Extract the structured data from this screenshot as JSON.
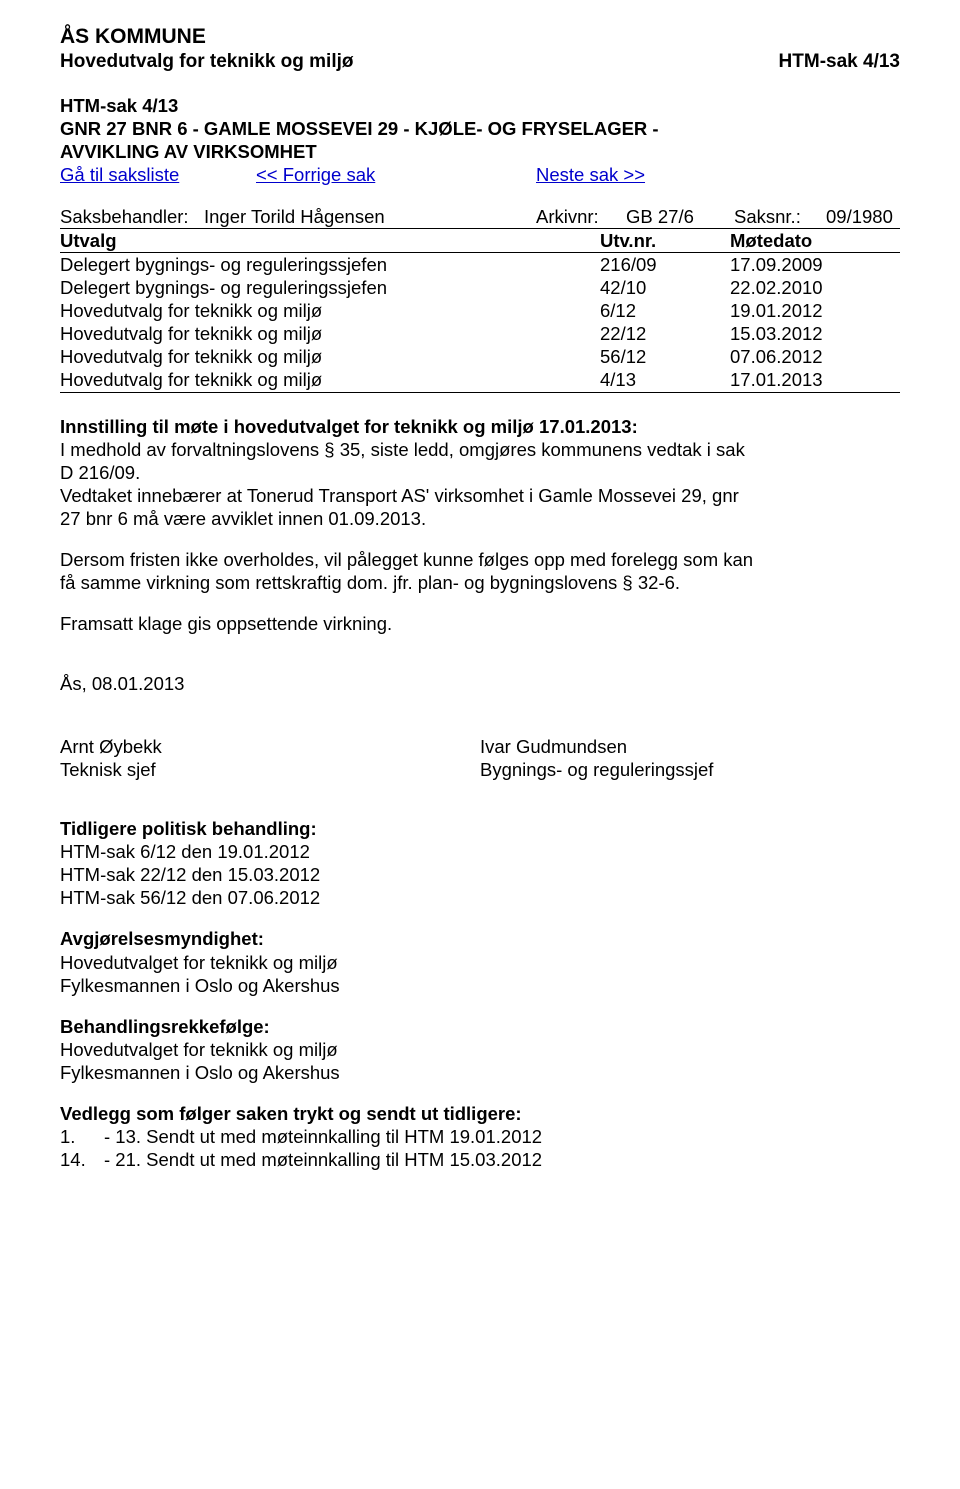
{
  "header": {
    "org": "ÅS KOMMUNE",
    "committee": "Hovedutvalg for teknikk og miljø",
    "case_ref": "HTM-sak 4/13"
  },
  "case": {
    "ref": "HTM-sak 4/13",
    "title_line1": "GNR 27 BNR 6 - GAMLE MOSSEVEI 29 - KJØLE- OG FRYSELAGER -",
    "title_line2": "AVVIKLING AV VIRKSOMHET"
  },
  "nav": {
    "saksliste": "Gå til saksliste",
    "prev": "<< Forrige sak",
    "next": "Neste sak >>"
  },
  "meta": {
    "handler_label": "Saksbehandler:",
    "handler_name": "Inger Torild Hågensen",
    "arkiv_label": "Arkivnr:",
    "arkiv_val": "GB 27/6",
    "saksnr_label": "Saksnr.:",
    "saksnr_val": "09/1980",
    "col1": "Utvalg",
    "col2": "Utv.nr.",
    "col3": "Møtedato"
  },
  "history": [
    {
      "body": "Delegert bygnings- og reguleringssjefen",
      "nr": "216/09",
      "date": "17.09.2009"
    },
    {
      "body": "Delegert bygnings- og reguleringssjefen",
      "nr": "42/10",
      "date": "22.02.2010"
    },
    {
      "body": "Hovedutvalg for teknikk og miljø",
      "nr": "6/12",
      "date": "19.01.2012"
    },
    {
      "body": "Hovedutvalg for teknikk og miljø",
      "nr": "22/12",
      "date": "15.03.2012"
    },
    {
      "body": "Hovedutvalg for teknikk og miljø",
      "nr": "56/12",
      "date": "07.06.2012"
    },
    {
      "body": "Hovedutvalg for teknikk og miljø",
      "nr": "4/13",
      "date": "17.01.2013"
    }
  ],
  "recommendation": {
    "heading": "Innstilling til møte i hovedutvalget for teknikk og miljø 17.01.2013:",
    "p1a": "I medhold av forvaltningslovens § 35, siste ledd, omgjøres kommunens vedtak i sak",
    "p1b": "D 216/09.",
    "p2a": "Vedtaket innebærer at Tonerud Transport AS' virksomhet i Gamle Mossevei 29, gnr",
    "p2b": "27 bnr 6 må være avviklet innen 01.09.2013.",
    "p3a": "Dersom fristen ikke overholdes, vil pålegget kunne følges opp med forelegg som kan",
    "p3b": "få samme virkning som rettskraftig dom. jfr. plan- og bygningslovens § 32-6.",
    "p4": "Framsatt klage gis oppsettende virkning."
  },
  "date_place": "Ås, 08.01.2013",
  "sign": {
    "left_name": "Arnt Øybekk",
    "left_title": "Teknisk sjef",
    "right_name": "Ivar Gudmundsen",
    "right_title": "Bygnings- og reguleringssjef"
  },
  "sections": {
    "tidligere": {
      "hd": "Tidligere politisk behandling:",
      "lines": [
        "HTM-sak 6/12 den 19.01.2012",
        "HTM-sak 22/12 den 15.03.2012",
        "HTM-sak 56/12 den 07.06.2012"
      ]
    },
    "avgj": {
      "hd": "Avgjørelsesmyndighet:",
      "lines": [
        "Hovedutvalget for teknikk og miljø",
        "Fylkesmannen i Oslo og Akershus"
      ]
    },
    "rekke": {
      "hd": "Behandlingsrekkefølge:",
      "lines": [
        "Hovedutvalget for teknikk og miljø",
        "Fylkesmannen i Oslo og Akershus"
      ]
    },
    "vedlegg": {
      "hd": "Vedlegg som følger saken trykt og sendt ut tidligere:",
      "items": [
        {
          "num": "1.",
          "text": "- 13. Sendt ut med møteinnkalling til HTM 19.01.2012"
        },
        {
          "num": "14.",
          "text": "- 21. Sendt ut med møteinnkalling til HTM 15.03.2012"
        }
      ]
    }
  }
}
